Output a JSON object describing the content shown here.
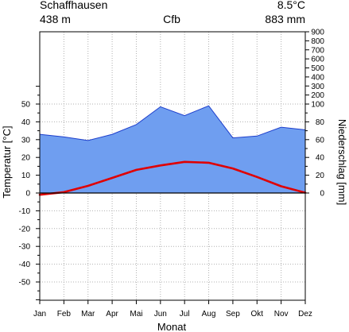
{
  "header": {
    "station": "Schaffhausen",
    "mean_temp": "8.5°C",
    "elevation": "438 m",
    "climate_class": "Cfb",
    "annual_precip": "883 mm"
  },
  "chart_data": {
    "type": "line",
    "title": "",
    "xlabel": "Monat",
    "ylabel_left": "Temperatur [°C]",
    "ylabel_right": "Niederschlag [mm]",
    "categories": [
      "Jan",
      "Feb",
      "Mar",
      "Apr",
      "Mai",
      "Jun",
      "Jul",
      "Aug",
      "Sep",
      "Okt",
      "Nov",
      "Dez"
    ],
    "temperature": {
      "axis": "left",
      "unit": "°C",
      "color": "#e00000",
      "values": [
        -1,
        0.5,
        4,
        8.5,
        13,
        15.5,
        17.5,
        17,
        13.8,
        9,
        3.8,
        0.2
      ]
    },
    "precipitation": {
      "axis": "right",
      "unit": "mm",
      "fill_color": "#6f9ef0",
      "line_color": "#1e3fcc",
      "values": [
        66,
        63,
        59,
        66,
        77,
        97,
        87,
        98,
        62,
        64,
        74,
        71
      ]
    },
    "left_axis": {
      "min": -60,
      "max": 60,
      "ticks": [
        -50,
        -40,
        -30,
        -20,
        -10,
        0,
        10,
        20,
        30,
        40,
        50
      ]
    },
    "right_axis": {
      "ticks": [
        0,
        20,
        40,
        60,
        80,
        100,
        200,
        300,
        400,
        500,
        600,
        700,
        800,
        900
      ]
    },
    "grid": true
  }
}
